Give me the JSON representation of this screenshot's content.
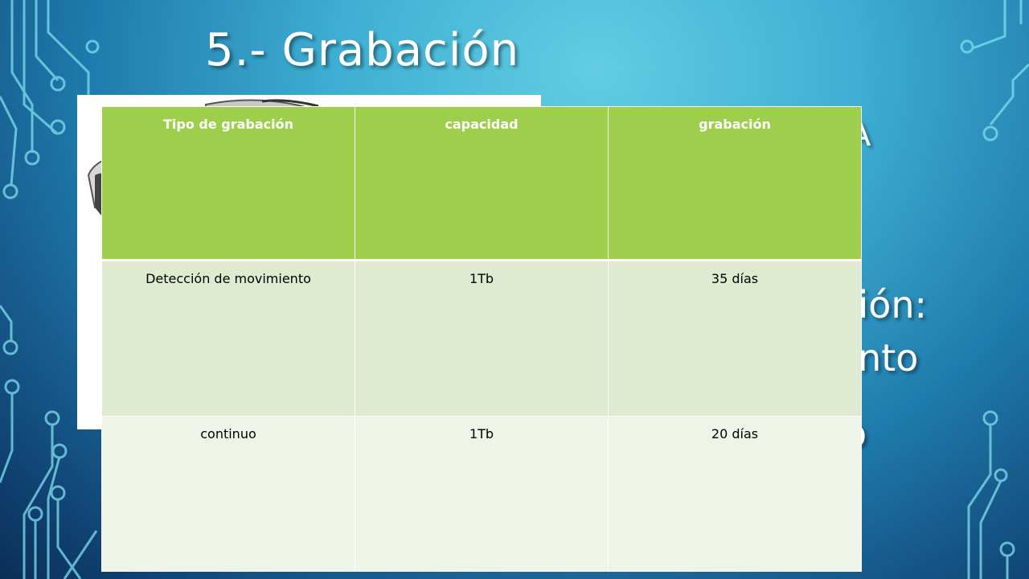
{
  "slide": {
    "title": "5.- Grabación",
    "background_partial_text": [
      "A",
      "ación:",
      "iento",
      "o"
    ]
  },
  "table": {
    "headers": [
      "Tipo de grabación",
      "capacidad",
      "grabación"
    ],
    "rows": [
      [
        "Detección de movimiento",
        "1Tb",
        "35 días"
      ],
      [
        "continuo",
        "1Tb",
        "20 días"
      ]
    ]
  },
  "colors": {
    "header_fill": "#9dcf4d",
    "row_1_fill": "#dfebd0",
    "row_2_fill": "#eef4e8",
    "title_text": "#ffffff"
  }
}
